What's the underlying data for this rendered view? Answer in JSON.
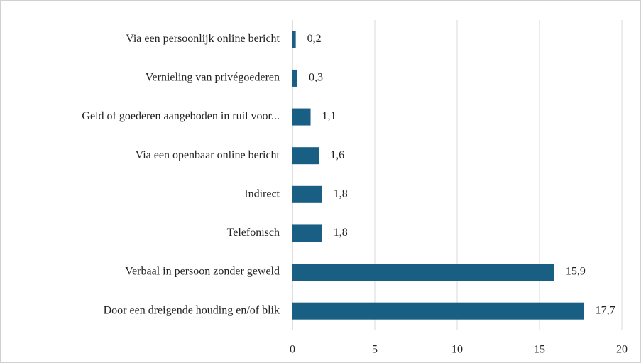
{
  "chart_data": {
    "type": "hbar",
    "categories": [
      "Via een persoonlijk online bericht",
      "Vernieling van privégoederen",
      "Geld of goederen aangeboden in ruil voor...",
      "Via een openbaar online bericht",
      "Indirect",
      "Telefonisch",
      "Verbaal in persoon zonder geweld",
      "Door een dreigende houding en/of blik"
    ],
    "values": [
      0.2,
      0.3,
      1.1,
      1.6,
      1.8,
      1.8,
      15.9,
      17.7
    ],
    "value_labels": [
      "0,2",
      "0,3",
      "1,1",
      "1,6",
      "1,8",
      "1,8",
      "15,9",
      "17,7"
    ],
    "color": "#195f84",
    "xlim": [
      0,
      20
    ],
    "xticks": [
      0,
      5,
      10,
      15,
      20
    ],
    "grid": true
  }
}
